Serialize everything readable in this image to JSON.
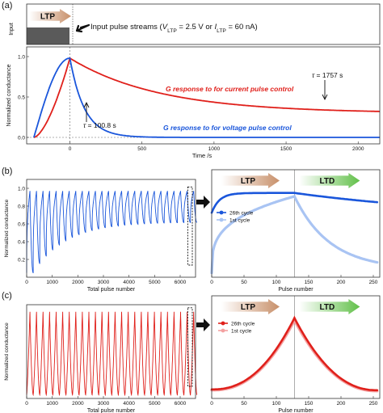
{
  "panel_labels": [
    "(a)",
    "(b)",
    "(c)"
  ],
  "colors": {
    "red": "#e0201b",
    "blue": "#1a56db",
    "light_blue": "#a9c4f3",
    "light_red": "#f4a1a1",
    "ltp_arrow": "#c8906a",
    "ltd_arrow": "#62c04a",
    "pulse_box": "#5a5a5a"
  },
  "chart_data": [
    {
      "id": "a-top",
      "type": "diagram",
      "ylabel": "Input",
      "arrow_label": "LTP",
      "annotation": "Input pulse streams (V_LTP = 2.5 V or I_LTP = 60 nA)",
      "annotation_parts": [
        "Input pulse streams (",
        "V",
        "LTP",
        " = 2.5 V or ",
        "I",
        "LTP",
        " = 60 nA)"
      ]
    },
    {
      "id": "a-main",
      "type": "line",
      "xlabel": "Time /s",
      "ylabel": "Normalized conductance",
      "xlim": [
        -300,
        2150
      ],
      "ylim": [
        -0.08,
        1.12
      ],
      "xticks": [
        0,
        500,
        1000,
        1500,
        2000
      ],
      "yticks": [
        0.0,
        0.5,
        1.0
      ],
      "series": [
        {
          "name": "G response to for current pulse control",
          "color": "red",
          "tau": 1757,
          "rise": "concave",
          "decay_to": 0.3
        },
        {
          "name": "G response to for voltage pulse control",
          "color": "blue",
          "tau": 100.8,
          "rise": "convex",
          "decay_to": 0.0
        }
      ],
      "annotations": [
        "τ = 1757 s",
        "τ = 100.8 s"
      ],
      "annotation_parts": [
        [
          "τ",
          " = 1757 s"
        ],
        [
          "τ",
          " = 100.8 s"
        ]
      ]
    },
    {
      "id": "b-left",
      "type": "line",
      "xlabel": "Total pulse number",
      "ylabel": "Normalized conductance",
      "xlim": [
        0,
        6600
      ],
      "ylim": [
        0,
        1.1
      ],
      "xticks": [
        0,
        1000,
        2000,
        3000,
        4000,
        5000,
        6000
      ],
      "yticks": [
        0.2,
        0.4,
        0.6,
        0.8,
        1.0
      ],
      "cycles": 26,
      "max": 0.97,
      "first_min": 0.05,
      "last_min": 0.62,
      "color": "blue"
    },
    {
      "id": "b-right",
      "type": "line",
      "xlabel": "Pulse number",
      "xlim": [
        0,
        260
      ],
      "xticks": [
        0,
        50,
        100,
        150,
        200,
        250
      ],
      "ltp_label": "LTP",
      "ltd_label": "LTD",
      "series": [
        {
          "name": "26th cycle",
          "color": "blue",
          "start": 0.75,
          "peak": 0.98,
          "end": 0.67
        },
        {
          "name": "1st cycle",
          "color": "light_blue",
          "start": 0.05,
          "peak": 0.94,
          "end": 0.09
        }
      ]
    },
    {
      "id": "c-left",
      "type": "line",
      "xlabel": "Total pulse number",
      "ylabel": "Normalized conductance",
      "xlim": [
        0,
        6600
      ],
      "ylim": [
        0,
        1.05
      ],
      "xticks": [
        0,
        1000,
        2000,
        3000,
        4000,
        5000,
        6000
      ],
      "cycles": 26,
      "max": 0.97,
      "min": 0.04,
      "color": "red"
    },
    {
      "id": "c-right",
      "type": "line",
      "xlabel": "Pulse number",
      "xlim": [
        0,
        260
      ],
      "xticks": [
        0,
        50,
        100,
        150,
        200,
        250
      ],
      "ltp_label": "LTP",
      "ltd_label": "LTD",
      "series": [
        {
          "name": "26th cycle",
          "color": "red",
          "start": 0.11,
          "peak": 0.98,
          "end": 0.1
        },
        {
          "name": "1st cycle",
          "color": "light_red",
          "start": 0.1,
          "peak": 0.95,
          "end": 0.09
        }
      ]
    }
  ]
}
